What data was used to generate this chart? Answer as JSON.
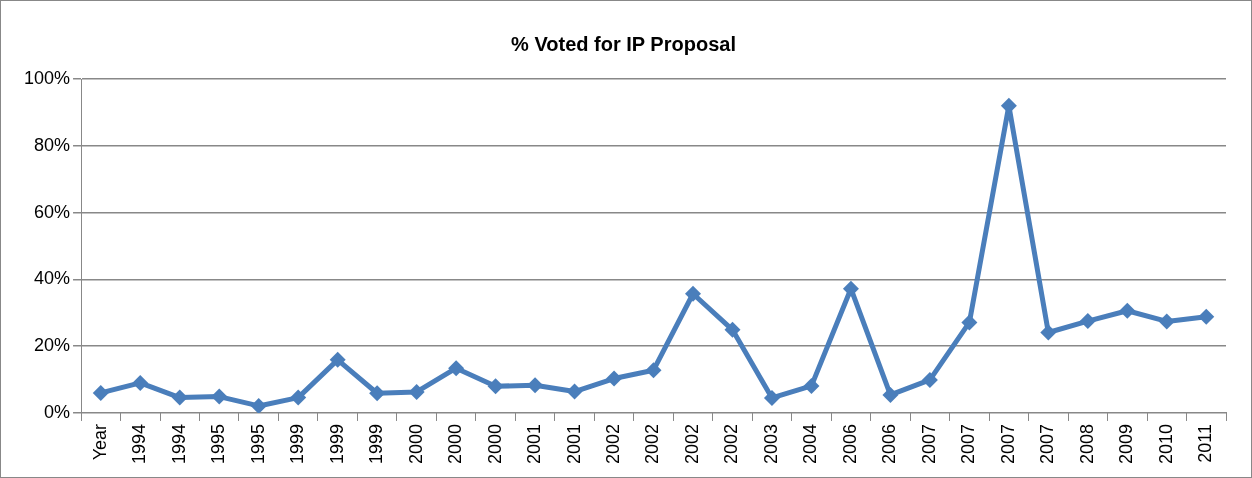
{
  "chart_data": {
    "type": "line",
    "title": "% Voted for IP Proposal",
    "categories": [
      "Year",
      "1994",
      "1994",
      "1995",
      "1995",
      "1999",
      "1999",
      "1999",
      "2000",
      "2000",
      "2000",
      "2001",
      "2001",
      "2002",
      "2002",
      "2002",
      "2002",
      "2003",
      "2004",
      "2006",
      "2006",
      "2007",
      "2007",
      "2007",
      "2007",
      "2008",
      "2009",
      "2010",
      "2011"
    ],
    "series": [
      {
        "color": "#4a7ebb",
        "values": [
          6,
          9,
          4.6,
          4.9,
          2.1,
          4.6,
          15.9,
          5.9,
          6.3,
          13.4,
          8,
          8.3,
          6.4,
          10.3,
          12.8,
          35.7,
          24.9,
          4.5,
          8.1,
          37.2,
          5.4,
          9.9,
          27.1,
          92,
          24.1,
          27.5,
          30.6,
          27.4,
          28.8
        ]
      }
    ],
    "ylim": [
      0,
      100
    ],
    "yticks": [
      {
        "value": 0,
        "label": "0%"
      },
      {
        "value": 20,
        "label": "20%"
      },
      {
        "value": 40,
        "label": "40%"
      },
      {
        "value": 60,
        "label": "60%"
      },
      {
        "value": 80,
        "label": "80%"
      },
      {
        "value": 100,
        "label": "100%"
      }
    ],
    "grid": "y",
    "legend": false,
    "marker": "diamond",
    "line_style": "solid"
  }
}
